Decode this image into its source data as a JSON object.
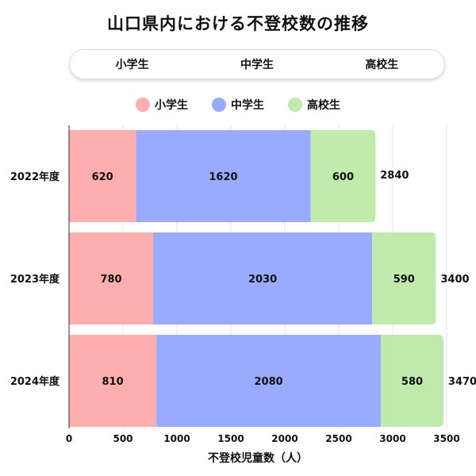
{
  "title": "山口県内における不登校数の推移",
  "tabs": [
    "小学生",
    "中学生",
    "高校生"
  ],
  "chart_data": {
    "type": "bar",
    "orientation": "horizontal",
    "stacked": true,
    "categories": [
      "2022年度",
      "2023年度",
      "2024年度"
    ],
    "series": [
      {
        "name": "小学生",
        "color": "#fdaeae",
        "values": [
          620,
          780,
          810
        ]
      },
      {
        "name": "中学生",
        "color": "#9aaafd",
        "values": [
          1620,
          2030,
          2080
        ]
      },
      {
        "name": "高校生",
        "color": "#c0ebad",
        "values": [
          600,
          590,
          580
        ]
      }
    ],
    "totals": [
      2840,
      3400,
      3470
    ],
    "xlabel": "不登校児童数（人）",
    "xlim": [
      0,
      3500
    ],
    "xticks": [
      0,
      500,
      1000,
      1500,
      2000,
      2500,
      3000,
      3500
    ],
    "grid": true,
    "legend": "top"
  }
}
